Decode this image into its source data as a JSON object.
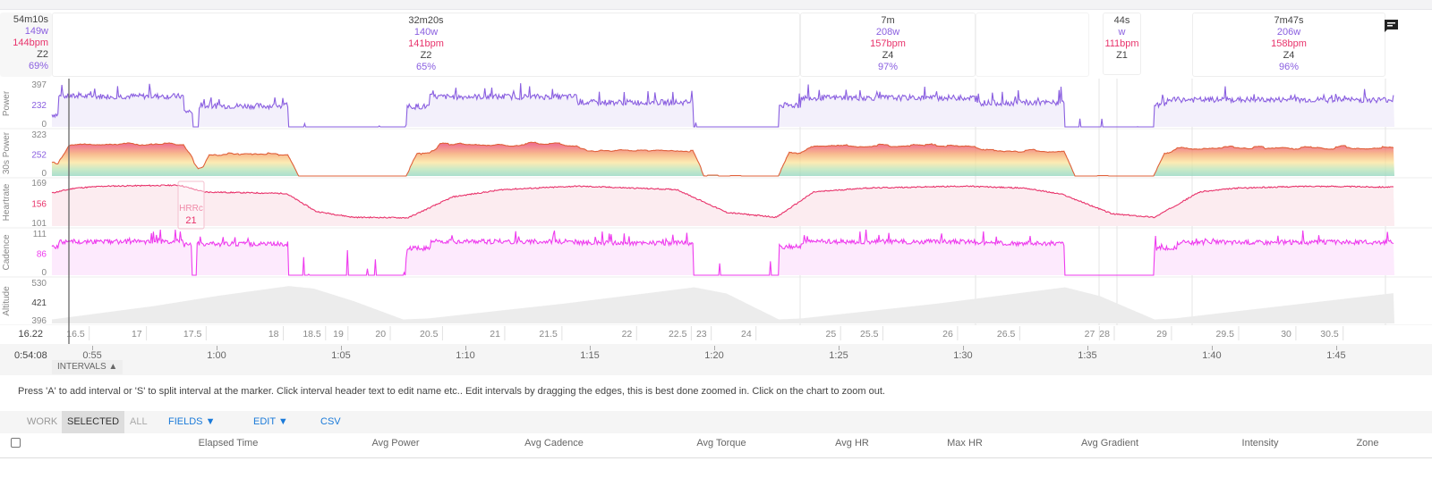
{
  "summary": {
    "duration": "54m10s",
    "power": "149w",
    "hr": "144bpm",
    "zone": "Z2",
    "intensity": "69%"
  },
  "intervals": [
    {
      "duration": "32m20s",
      "power": "140w",
      "hr": "141bpm",
      "zone": "Z2",
      "intensity": "65%"
    },
    {
      "duration": "7m",
      "power": "208w",
      "hr": "157bpm",
      "zone": "Z4",
      "intensity": "97%"
    },
    {
      "duration": "44s",
      "power": "w",
      "hr": "111bpm",
      "zone": "Z1",
      "intensity": ""
    },
    {
      "duration": "7m47s",
      "power": "206w",
      "hr": "158bpm",
      "zone": "Z4",
      "intensity": "96%"
    }
  ],
  "colors": {
    "power": "#8a5fe0",
    "hr": "#e8336b",
    "cadence": "#ee3bee",
    "altitude": "#cccccc",
    "accent": "#1a7ad9"
  },
  "chart_data": {
    "type": "line",
    "x_unit": "minutes",
    "x_range": [
      53.38,
      107.34
    ],
    "panels": [
      {
        "name": "Power",
        "ticks": [
          "397",
          "232",
          "0"
        ],
        "ylim": [
          0,
          420
        ],
        "segments": [
          [
            53.38,
            53.63,
            120
          ],
          [
            53.63,
            58.67,
            300
          ],
          [
            58.67,
            59.03,
            150
          ],
          [
            59.03,
            59.28,
            0
          ],
          [
            59.28,
            62.88,
            205
          ],
          [
            62.88,
            67.66,
            0
          ],
          [
            67.66,
            68.56,
            200
          ],
          [
            68.56,
            74.5,
            295
          ],
          [
            74.5,
            79.17,
            240
          ],
          [
            79.17,
            82.59,
            0
          ],
          [
            82.59,
            83.49,
            210
          ],
          [
            83.49,
            90.5,
            285
          ],
          [
            90.5,
            94.1,
            235
          ],
          [
            94.1,
            97.7,
            0
          ],
          [
            97.7,
            98.2,
            210
          ],
          [
            98.2,
            107.34,
            265
          ]
        ]
      },
      {
        "name": "30s Power",
        "ticks": [
          "323",
          "252",
          "0"
        ],
        "ylim": [
          0,
          340
        ]
      },
      {
        "name": "Heartrate",
        "ticks": [
          "169",
          "156",
          "101"
        ],
        "ylim": [
          90,
          180
        ],
        "points": [
          [
            53.38,
            158
          ],
          [
            54.3,
            168
          ],
          [
            55.5,
            172
          ],
          [
            58.5,
            174
          ],
          [
            59.5,
            160
          ],
          [
            62.8,
            157
          ],
          [
            64,
            120
          ],
          [
            65.5,
            108
          ],
          [
            67.7,
            107
          ],
          [
            69.5,
            150
          ],
          [
            71.5,
            165
          ],
          [
            74.5,
            172
          ],
          [
            78.5,
            165
          ],
          [
            80.5,
            118
          ],
          [
            82.5,
            108
          ],
          [
            84,
            160
          ],
          [
            86,
            168
          ],
          [
            90,
            172
          ],
          [
            92.5,
            168
          ],
          [
            94,
            155
          ],
          [
            96,
            115
          ],
          [
            97.7,
            108
          ],
          [
            99.5,
            160
          ],
          [
            101,
            168
          ],
          [
            104,
            172
          ],
          [
            107.34,
            170
          ]
        ]
      },
      {
        "name": "Cadence",
        "ticks": [
          "111",
          "86",
          "0"
        ],
        "ylim": [
          0,
          125
        ],
        "segments": [
          [
            53.38,
            53.63,
            85
          ],
          [
            53.63,
            58.67,
            100
          ],
          [
            58.67,
            59.0,
            90
          ],
          [
            59.0,
            59.2,
            0
          ],
          [
            59.2,
            62.88,
            93
          ],
          [
            62.88,
            67.66,
            0
          ],
          [
            67.66,
            68.6,
            80
          ],
          [
            68.6,
            74.5,
            100
          ],
          [
            74.5,
            79.17,
            96
          ],
          [
            79.17,
            82.59,
            0
          ],
          [
            82.59,
            83.49,
            85
          ],
          [
            83.49,
            90.5,
            100
          ],
          [
            90.5,
            94.1,
            95
          ],
          [
            94.1,
            97.7,
            0
          ],
          [
            97.7,
            98.6,
            80
          ],
          [
            98.6,
            107.34,
            98
          ]
        ]
      },
      {
        "name": "Altitude",
        "ticks": [
          "530",
          "421",
          "396"
        ],
        "ylim": [
          380,
          545
        ],
        "points": [
          [
            53.38,
            396
          ],
          [
            57.5,
            450
          ],
          [
            60,
            490
          ],
          [
            62.9,
            530
          ],
          [
            63.9,
            520
          ],
          [
            65.5,
            470
          ],
          [
            67.5,
            396
          ],
          [
            68.5,
            400
          ],
          [
            74,
            460
          ],
          [
            79.2,
            525
          ],
          [
            80.5,
            500
          ],
          [
            82.6,
            396
          ],
          [
            83.5,
            400
          ],
          [
            89,
            460
          ],
          [
            94.1,
            525
          ],
          [
            95.5,
            490
          ],
          [
            97.7,
            396
          ],
          [
            98.5,
            400
          ],
          [
            107.34,
            502
          ]
        ]
      }
    ],
    "markers": [
      {
        "label": "HRRc",
        "value": "21"
      }
    ],
    "distance_axis": {
      "start": "16.22",
      "ticks": [
        [
          "16.5",
          54.7
        ],
        [
          "17",
          57.0
        ],
        [
          "17.5",
          59.4
        ],
        [
          "18",
          62.5
        ],
        [
          "18.5",
          64.2
        ],
        [
          "19",
          65.1
        ],
        [
          "20",
          66.8
        ],
        [
          "20.5",
          68.9
        ],
        [
          "21",
          71.4
        ],
        [
          "21.5",
          73.7
        ],
        [
          "22",
          76.7
        ],
        [
          "22.5",
          78.9
        ],
        [
          "23",
          79.7
        ],
        [
          "24",
          81.5
        ],
        [
          "25",
          84.9
        ],
        [
          "25.5",
          86.6
        ],
        [
          "26",
          89.6
        ],
        [
          "26.5",
          92.1
        ],
        [
          "27",
          95.3
        ],
        [
          "28",
          95.9
        ],
        [
          "29",
          98.2
        ],
        [
          "29.5",
          100.9
        ],
        [
          "30",
          103.2
        ],
        [
          "30.5",
          105.1
        ]
      ]
    },
    "time_axis": {
      "start": "0:54:08",
      "ticks": [
        [
          "0:55",
          55
        ],
        [
          "1:00",
          60
        ],
        [
          "1:05",
          65
        ],
        [
          "1:10",
          70
        ],
        [
          "1:15",
          75
        ],
        [
          "1:20",
          80
        ],
        [
          "1:25",
          85
        ],
        [
          "1:30",
          90
        ],
        [
          "1:35",
          95
        ],
        [
          "1:40",
          100
        ],
        [
          "1:45",
          105
        ]
      ]
    }
  },
  "intervals_button": "INTERVALS ▲",
  "hint": "Press 'A' to add interval or 'S' to split interval at the marker. Click interval header text to edit name etc.. Edit intervals by dragging the edges, this is best done zoomed in. Click on the chart to zoom out.",
  "toolbar": {
    "work": "WORK",
    "selected": "SELECTED",
    "all": "ALL",
    "fields": "FIELDS ▼",
    "edit": "EDIT ▼",
    "csv": "CSV"
  },
  "table_headers": [
    "Elapsed Time",
    "Avg Power",
    "Avg Cadence",
    "Avg Torque",
    "Avg HR",
    "Max HR",
    "Avg Gradient",
    "Intensity",
    "Zone"
  ]
}
